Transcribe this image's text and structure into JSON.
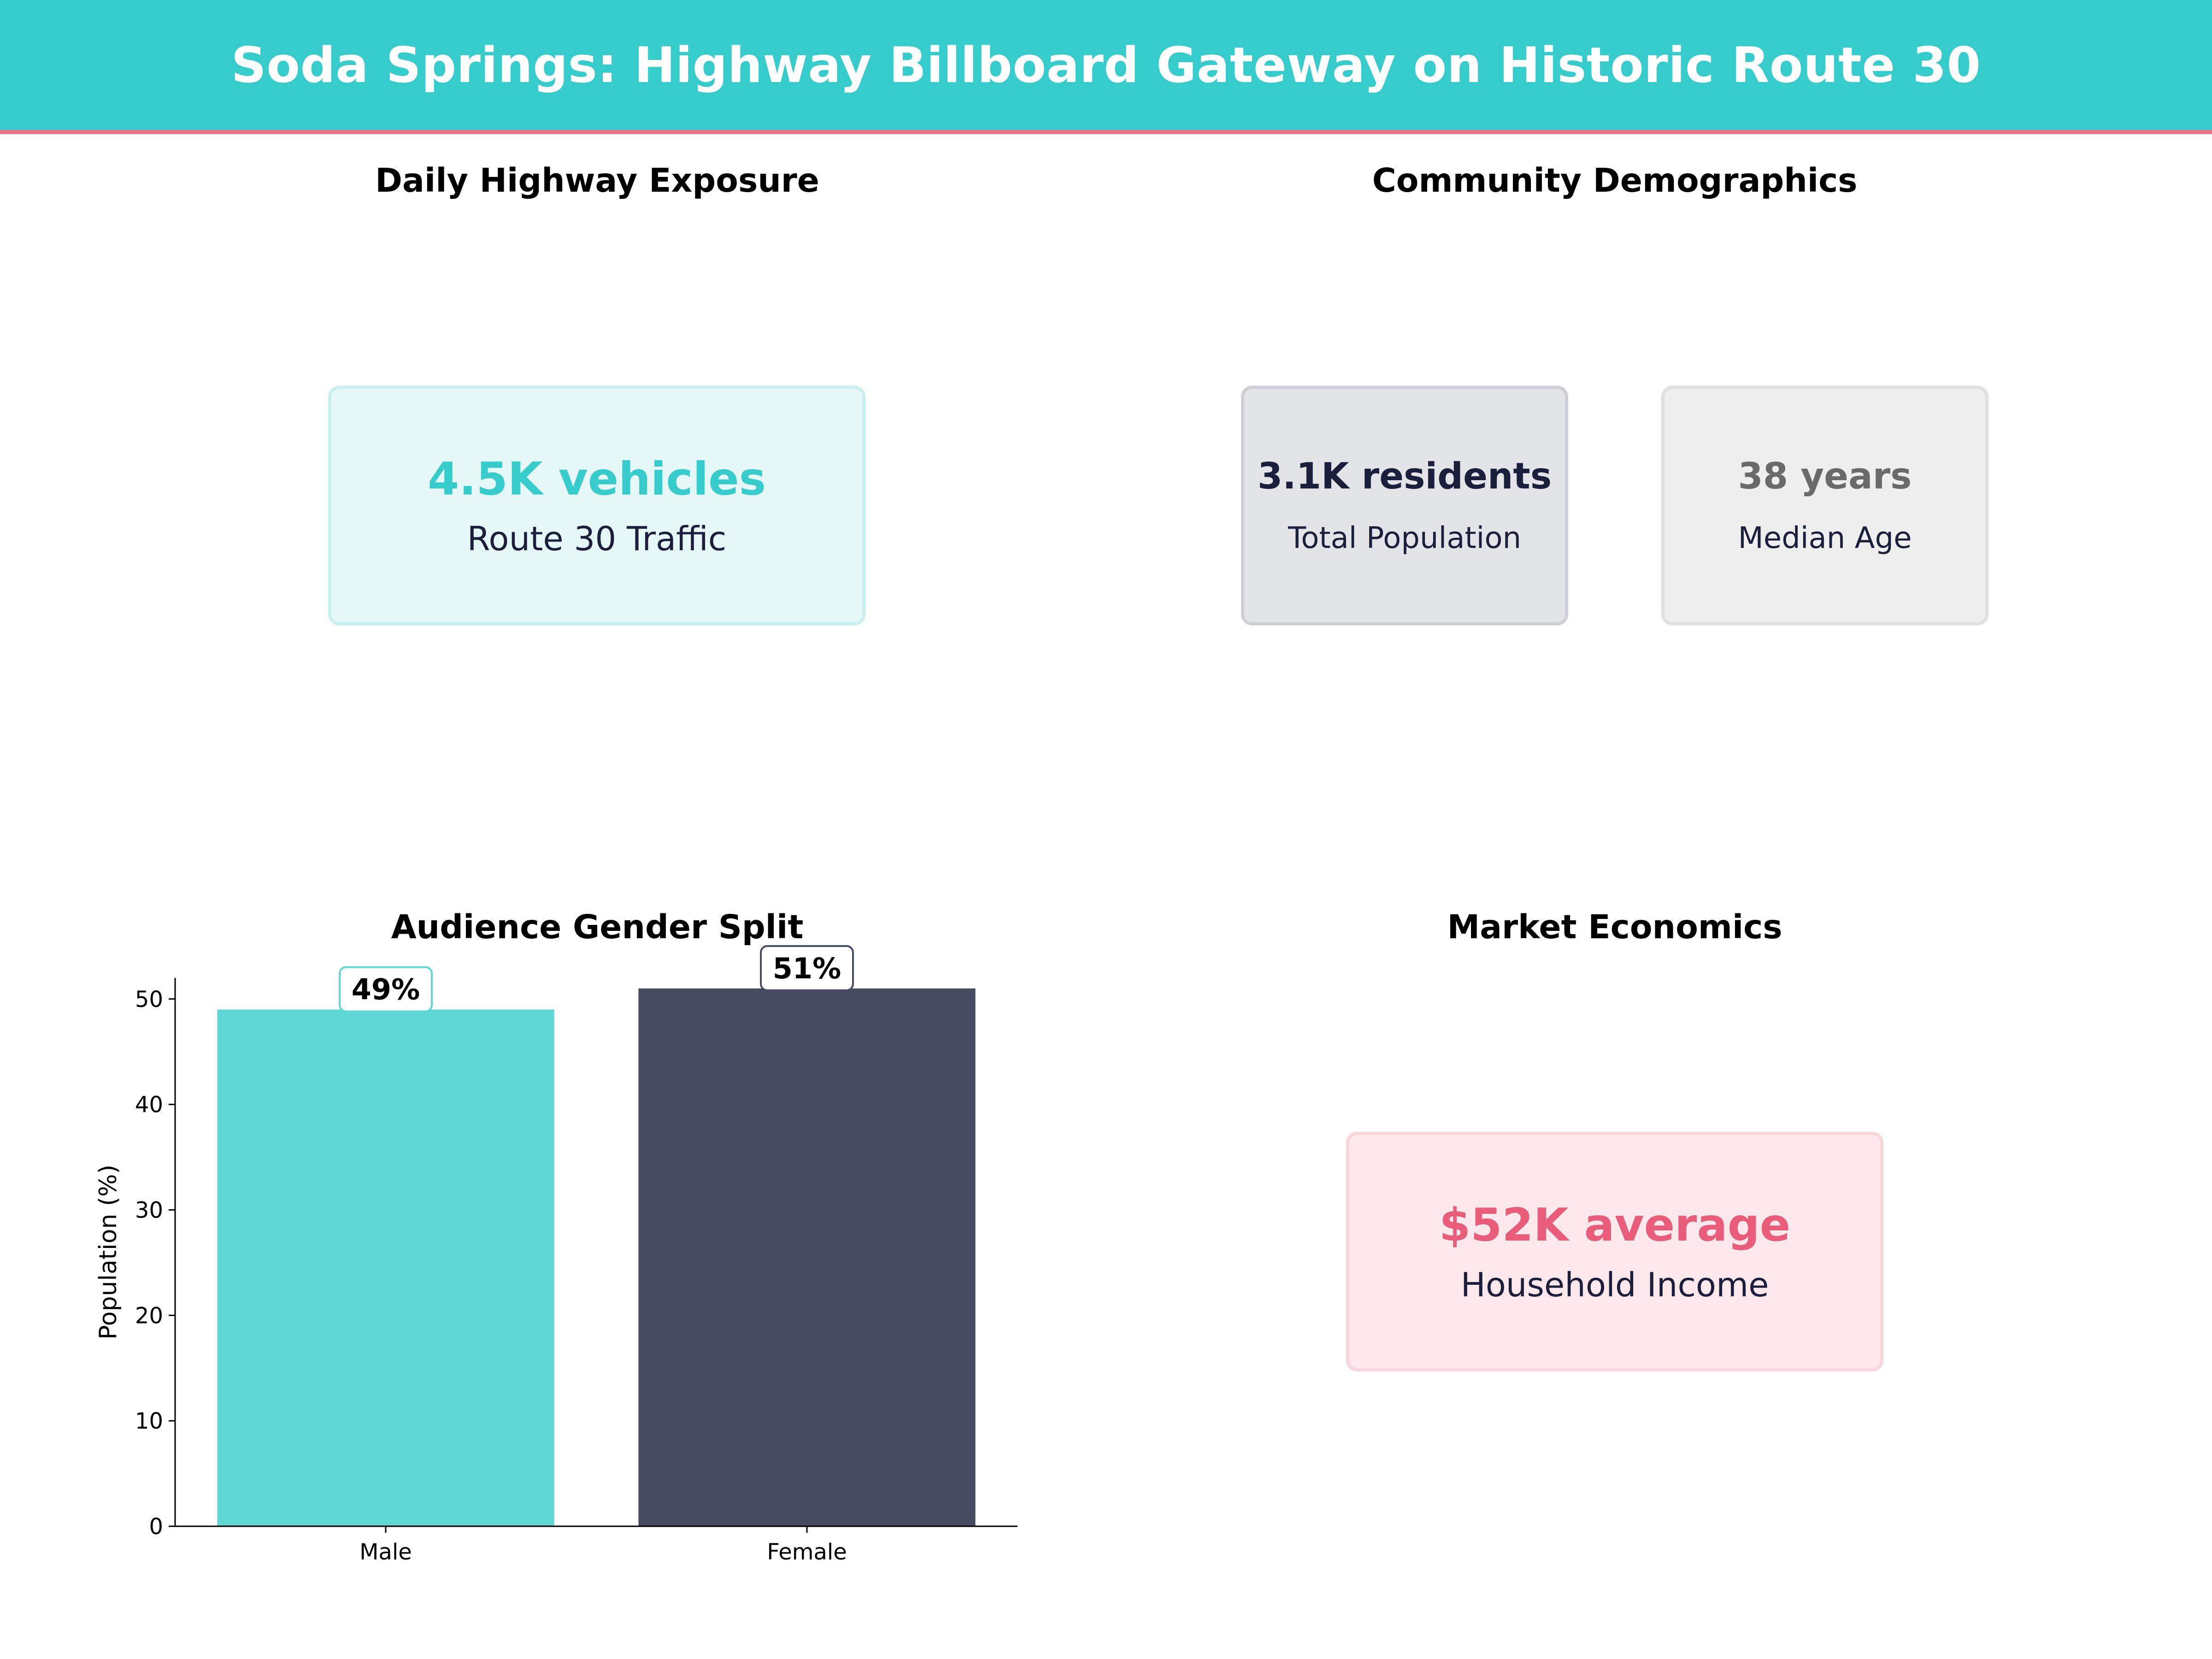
{
  "header": {
    "title": "Soda Springs: Highway Billboard Gateway on Historic Route 30"
  },
  "colors": {
    "banner": "#36cccc",
    "accent_red": "#ef6f86",
    "navy": "#1b1f3b",
    "male_bar": "#5fd7d5",
    "female_bar": "#474b61"
  },
  "panels": {
    "exposure": {
      "title": "Daily Highway Exposure",
      "traffic": {
        "value": "4.5K vehicles",
        "label": "Route 30 Traffic"
      }
    },
    "demographics": {
      "title": "Community Demographics",
      "population": {
        "value": "3.1K residents",
        "label": "Total Population"
      },
      "age": {
        "value": "38 years",
        "label": "Median Age"
      }
    },
    "gender": {
      "title": "Audience Gender Split"
    },
    "economics": {
      "title": "Market Economics",
      "income": {
        "value": "$52K average",
        "label": "Household Income"
      }
    }
  },
  "chart_data": {
    "type": "bar",
    "title": "Audience Gender Split",
    "categories": [
      "Male",
      "Female"
    ],
    "values": [
      49,
      51
    ],
    "data_labels": [
      "49%",
      "51%"
    ],
    "colors": [
      "#5fd7d5",
      "#474b61"
    ],
    "ylabel": "Population (%)",
    "xlabel": "",
    "ylim": [
      0,
      52
    ],
    "yticks": [
      0,
      10,
      20,
      30,
      40,
      50
    ],
    "grid": false
  }
}
